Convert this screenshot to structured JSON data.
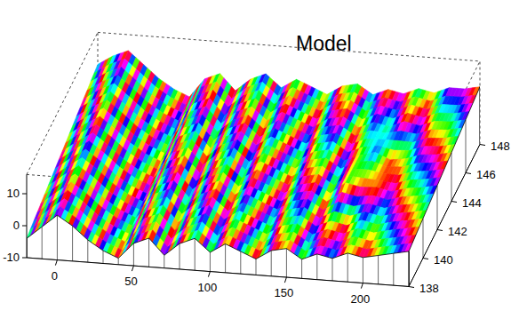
{
  "chart_data": {
    "type": "surface",
    "title": "Model",
    "x": [
      -20,
      -10,
      0,
      10,
      20,
      30,
      40,
      50,
      60,
      70,
      80,
      90,
      100,
      110,
      120,
      130,
      140,
      150,
      160,
      170,
      180,
      190,
      200,
      210,
      220,
      230
    ],
    "y": [
      138,
      140,
      142,
      144,
      146,
      148
    ],
    "z": [
      [
        -4,
        0,
        4,
        1,
        -3,
        -6,
        -8,
        -3,
        -1,
        -6,
        -2,
        0,
        -4,
        -1,
        -3,
        -5,
        -2,
        -1,
        -4,
        -2,
        -3,
        -1,
        -2,
        -1,
        0,
        1
      ],
      [
        -2,
        1.8,
        5.4,
        2.2,
        -1.8,
        -4.8,
        -6.8,
        -1.6,
        0.4,
        -4.6,
        -0.6,
        1.4,
        -2.6,
        0.4,
        -1.6,
        -3.6,
        -0.6,
        0.4,
        -2.6,
        -0.6,
        -1.6,
        0.4,
        -0.6,
        0.6,
        1.4,
        2.4
      ],
      [
        0,
        3.6,
        6.8,
        3.4,
        -0.6,
        -3.6,
        -5.6,
        -0.2,
        1.8,
        -3.2,
        0.8,
        2.8,
        -1.2,
        1.8,
        -0.2,
        -2.2,
        0.8,
        1.8,
        -1.2,
        2.5,
        1.5,
        1.8,
        0.8,
        2.2,
        2.8,
        3.8
      ],
      [
        2,
        5.4,
        8.2,
        4.6,
        0.6,
        -2.4,
        -4.4,
        1.2,
        3.2,
        -1.8,
        2.2,
        4.2,
        0.2,
        3.2,
        1.2,
        -0.8,
        2.2,
        3.2,
        0.2,
        2.2,
        3.5,
        1.5,
        2.2,
        3.8,
        4.2,
        5.2
      ],
      [
        4,
        7.2,
        9.6,
        5.8,
        1.8,
        -1.2,
        -3.2,
        2.6,
        4.6,
        -0.4,
        3.6,
        5.6,
        1.6,
        4.6,
        2.6,
        0.6,
        3.6,
        4.6,
        1.6,
        3.6,
        2.6,
        4.6,
        3.6,
        5.4,
        5.6,
        6.6
      ],
      [
        6,
        9,
        11,
        7,
        3,
        0,
        -2,
        4,
        6,
        1,
        5,
        7,
        3,
        6,
        4,
        2,
        5,
        6,
        3,
        5,
        4,
        6,
        5,
        7,
        7,
        8
      ]
    ],
    "xlim": [
      -20,
      230
    ],
    "ylim": [
      138,
      148
    ],
    "zlim": [
      -10,
      16
    ],
    "xticks": [
      0,
      50,
      100,
      150,
      200
    ],
    "yticks": [
      138,
      140,
      142,
      144,
      146,
      148
    ],
    "zticks": [
      -10,
      0,
      10
    ],
    "clim": [
      -1.5,
      1.5
    ]
  }
}
